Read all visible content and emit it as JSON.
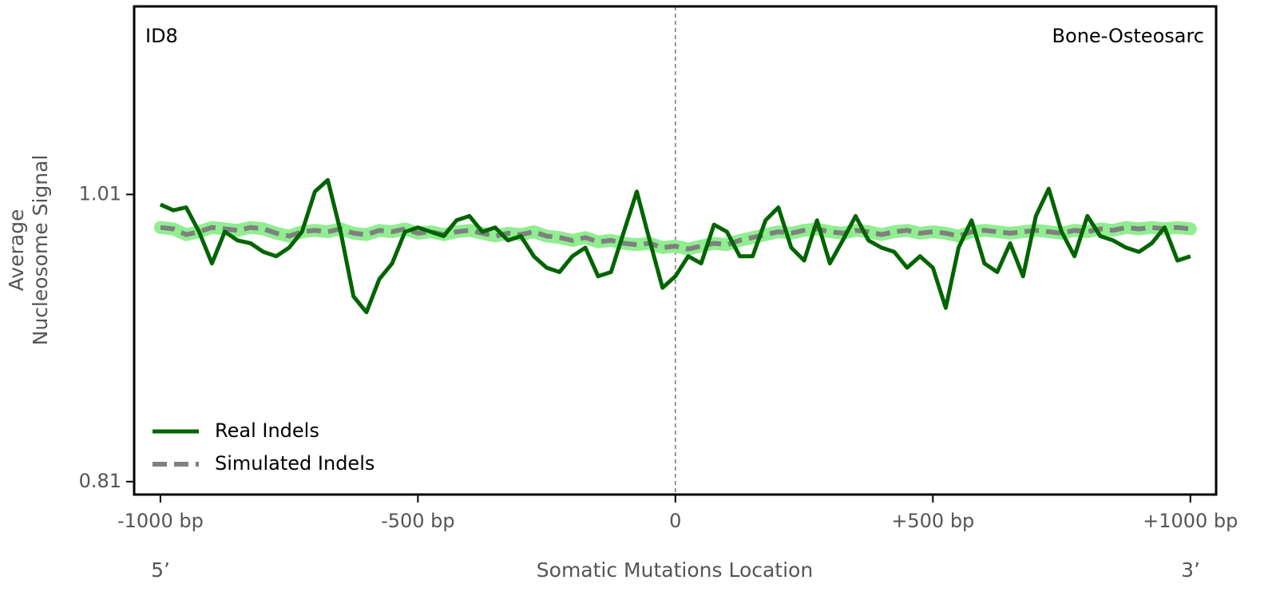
{
  "chart_data": {
    "type": "line",
    "annotations": [
      "ID8",
      "Bone-Osteosarc",
      "5’",
      "3’"
    ],
    "xlabel": "Somatic Mutations Location",
    "ylabel": [
      "Average",
      "Nucleosome Signal"
    ],
    "x": [
      -1000,
      -975,
      -950,
      -925,
      -900,
      -875,
      -850,
      -825,
      -800,
      -775,
      -750,
      -725,
      -700,
      -675,
      -650,
      -625,
      -600,
      -575,
      -550,
      -525,
      -500,
      -475,
      -450,
      -425,
      -400,
      -375,
      -350,
      -325,
      -300,
      -275,
      -250,
      -225,
      -200,
      -175,
      -150,
      -125,
      -100,
      -75,
      -50,
      -25,
      0,
      25,
      50,
      75,
      100,
      125,
      150,
      175,
      200,
      225,
      250,
      275,
      300,
      325,
      350,
      375,
      400,
      425,
      450,
      475,
      500,
      525,
      550,
      575,
      600,
      625,
      650,
      675,
      700,
      725,
      750,
      775,
      800,
      825,
      850,
      875,
      900,
      925,
      950,
      975,
      1000
    ],
    "series": [
      {
        "name": "Real Indels",
        "color": "#006400",
        "values": [
          1.003,
          0.999,
          1.001,
          0.984,
          0.962,
          0.984,
          0.978,
          0.976,
          0.97,
          0.967,
          0.973,
          0.984,
          1.012,
          1.02,
          0.984,
          0.939,
          0.928,
          0.951,
          0.962,
          0.984,
          0.987,
          0.984,
          0.981,
          0.992,
          0.995,
          0.984,
          0.987,
          0.978,
          0.981,
          0.967,
          0.959,
          0.956,
          0.967,
          0.973,
          0.953,
          0.956,
          0.984,
          1.012,
          0.978,
          0.945,
          0.953,
          0.967,
          0.962,
          0.989,
          0.984,
          0.967,
          0.967,
          0.992,
          1.001,
          0.973,
          0.964,
          0.992,
          0.962,
          0.978,
          0.995,
          0.978,
          0.973,
          0.97,
          0.959,
          0.967,
          0.959,
          0.931,
          0.973,
          0.992,
          0.962,
          0.956,
          0.976,
          0.953,
          0.995,
          1.014,
          0.984,
          0.967,
          0.995,
          0.981,
          0.978,
          0.973,
          0.97,
          0.976,
          0.987,
          0.964,
          0.967
        ]
      },
      {
        "name": "Simulated Indels",
        "color": "#808080",
        "values": [
          0.987,
          0.986,
          0.982,
          0.984,
          0.987,
          0.986,
          0.985,
          0.987,
          0.986,
          0.983,
          0.981,
          0.984,
          0.985,
          0.984,
          0.986,
          0.983,
          0.982,
          0.985,
          0.984,
          0.986,
          0.983,
          0.984,
          0.982,
          0.984,
          0.985,
          0.983,
          0.981,
          0.983,
          0.982,
          0.984,
          0.981,
          0.98,
          0.978,
          0.98,
          0.977,
          0.978,
          0.976,
          0.975,
          0.976,
          0.973,
          0.974,
          0.972,
          0.974,
          0.976,
          0.975,
          0.978,
          0.98,
          0.982,
          0.984,
          0.983,
          0.985,
          0.986,
          0.984,
          0.983,
          0.985,
          0.984,
          0.982,
          0.984,
          0.985,
          0.983,
          0.984,
          0.983,
          0.981,
          0.984,
          0.985,
          0.984,
          0.983,
          0.984,
          0.985,
          0.984,
          0.983,
          0.985,
          0.984,
          0.986,
          0.985,
          0.987,
          0.986,
          0.987,
          0.986,
          0.987,
          0.986
        ]
      }
    ],
    "xlim": [
      -1051,
      1050
    ],
    "ylim": [
      0.801,
      1.141
    ],
    "xticks": [
      {
        "value": -1000,
        "label": "-1000 bp"
      },
      {
        "value": -500,
        "label": "-500 bp"
      },
      0,
      {
        "value": 500,
        "label": "+500 bp"
      },
      {
        "value": 1000,
        "label": "+1000 bp"
      }
    ],
    "yticks": [
      0.81,
      1.01
    ],
    "vline": 0,
    "legend": "lower left"
  }
}
